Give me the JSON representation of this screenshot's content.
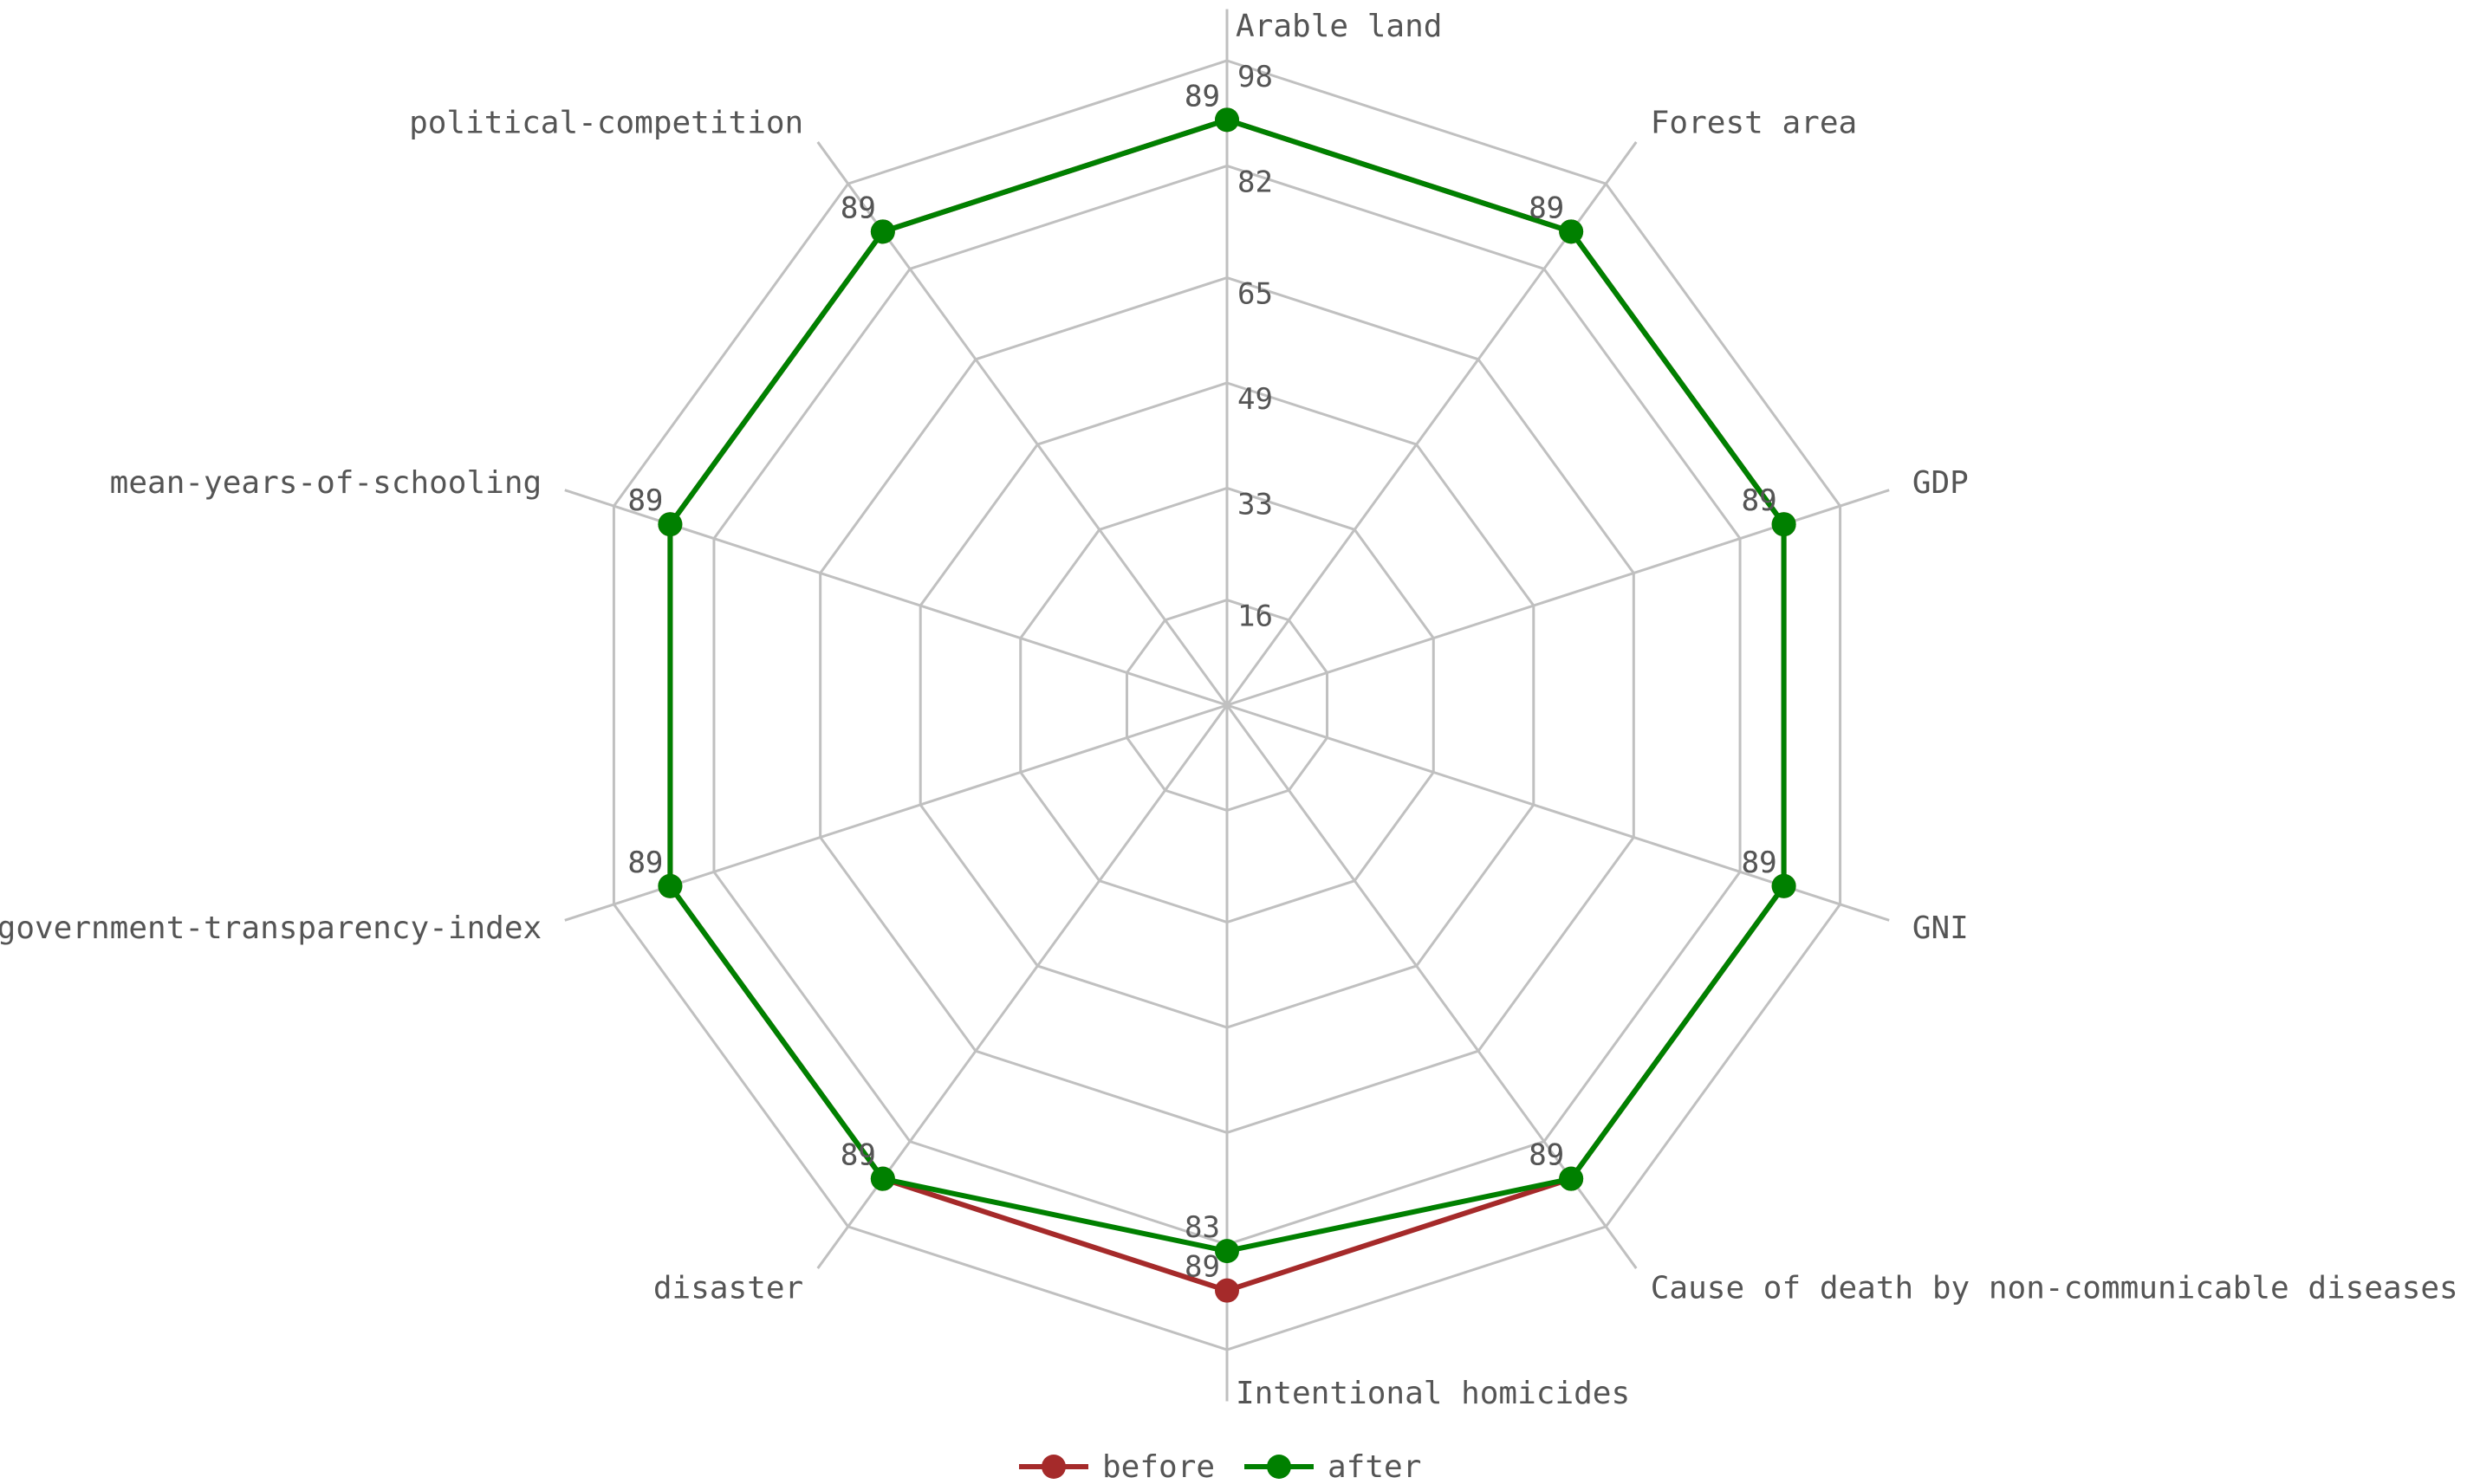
{
  "chart_data": {
    "type": "radar",
    "axes": [
      "Arable land",
      "Forest area",
      "GDP",
      "GNI",
      "Cause of death by non-communicable diseases",
      "Intentional homicides",
      "disaster",
      "government-transparency-index",
      "mean-years-of-schooling",
      "political-competition"
    ],
    "ticks": [
      "16",
      "33",
      "49",
      "65",
      "82",
      "98"
    ],
    "range": [
      0,
      98
    ],
    "grid": true,
    "legend_position": "bottom-center",
    "series": [
      {
        "name": "before",
        "color": "#a52a2a",
        "values": [
          89,
          89,
          89,
          89,
          89,
          89,
          89,
          89,
          89,
          89
        ],
        "labels": [
          "89",
          "89",
          "89",
          "89",
          "89",
          "89",
          "89",
          "89",
          "89",
          "89"
        ]
      },
      {
        "name": "after",
        "color": "#008000",
        "values": [
          89,
          89,
          89,
          89,
          89,
          83,
          89,
          89,
          89,
          89
        ],
        "labels": [
          "89",
          "89",
          "89",
          "89",
          "89",
          "83",
          "89",
          "89",
          "89",
          "89"
        ]
      }
    ]
  }
}
